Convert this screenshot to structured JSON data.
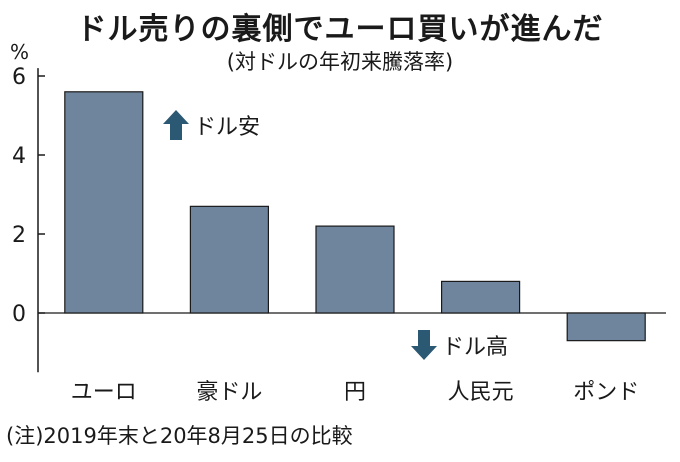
{
  "title": "ドル売りの裏側でユーロ買いが進んだ",
  "subtitle": "(対ドルの年初来騰落率)",
  "unit": "%",
  "note": "(注)2019年末と20年8月25日の比較",
  "colors": {
    "bar_fill": "#6f859d",
    "bar_stroke": "#1a1a1a",
    "arrow": "#2b5873"
  },
  "icons": {
    "up": "arrow-up-icon",
    "down": "arrow-down-icon"
  },
  "annotations": {
    "up": "ドル安",
    "down": "ドル高"
  },
  "chart_data": {
    "type": "bar",
    "title": "ドル売りの裏側でユーロ買いが進んだ",
    "subtitle": "(対ドルの年初来騰落率)",
    "xlabel": "",
    "ylabel": "%",
    "categories": [
      "ユーロ",
      "豪ドル",
      "円",
      "人民元",
      "ポンド"
    ],
    "values": [
      5.6,
      2.7,
      2.2,
      0.8,
      -0.7
    ],
    "yticks": [
      0,
      2,
      4,
      6
    ],
    "ylim": [
      -1.5,
      6.2
    ],
    "grid": false,
    "annotations": [
      "ドル安",
      "ドル高"
    ]
  }
}
